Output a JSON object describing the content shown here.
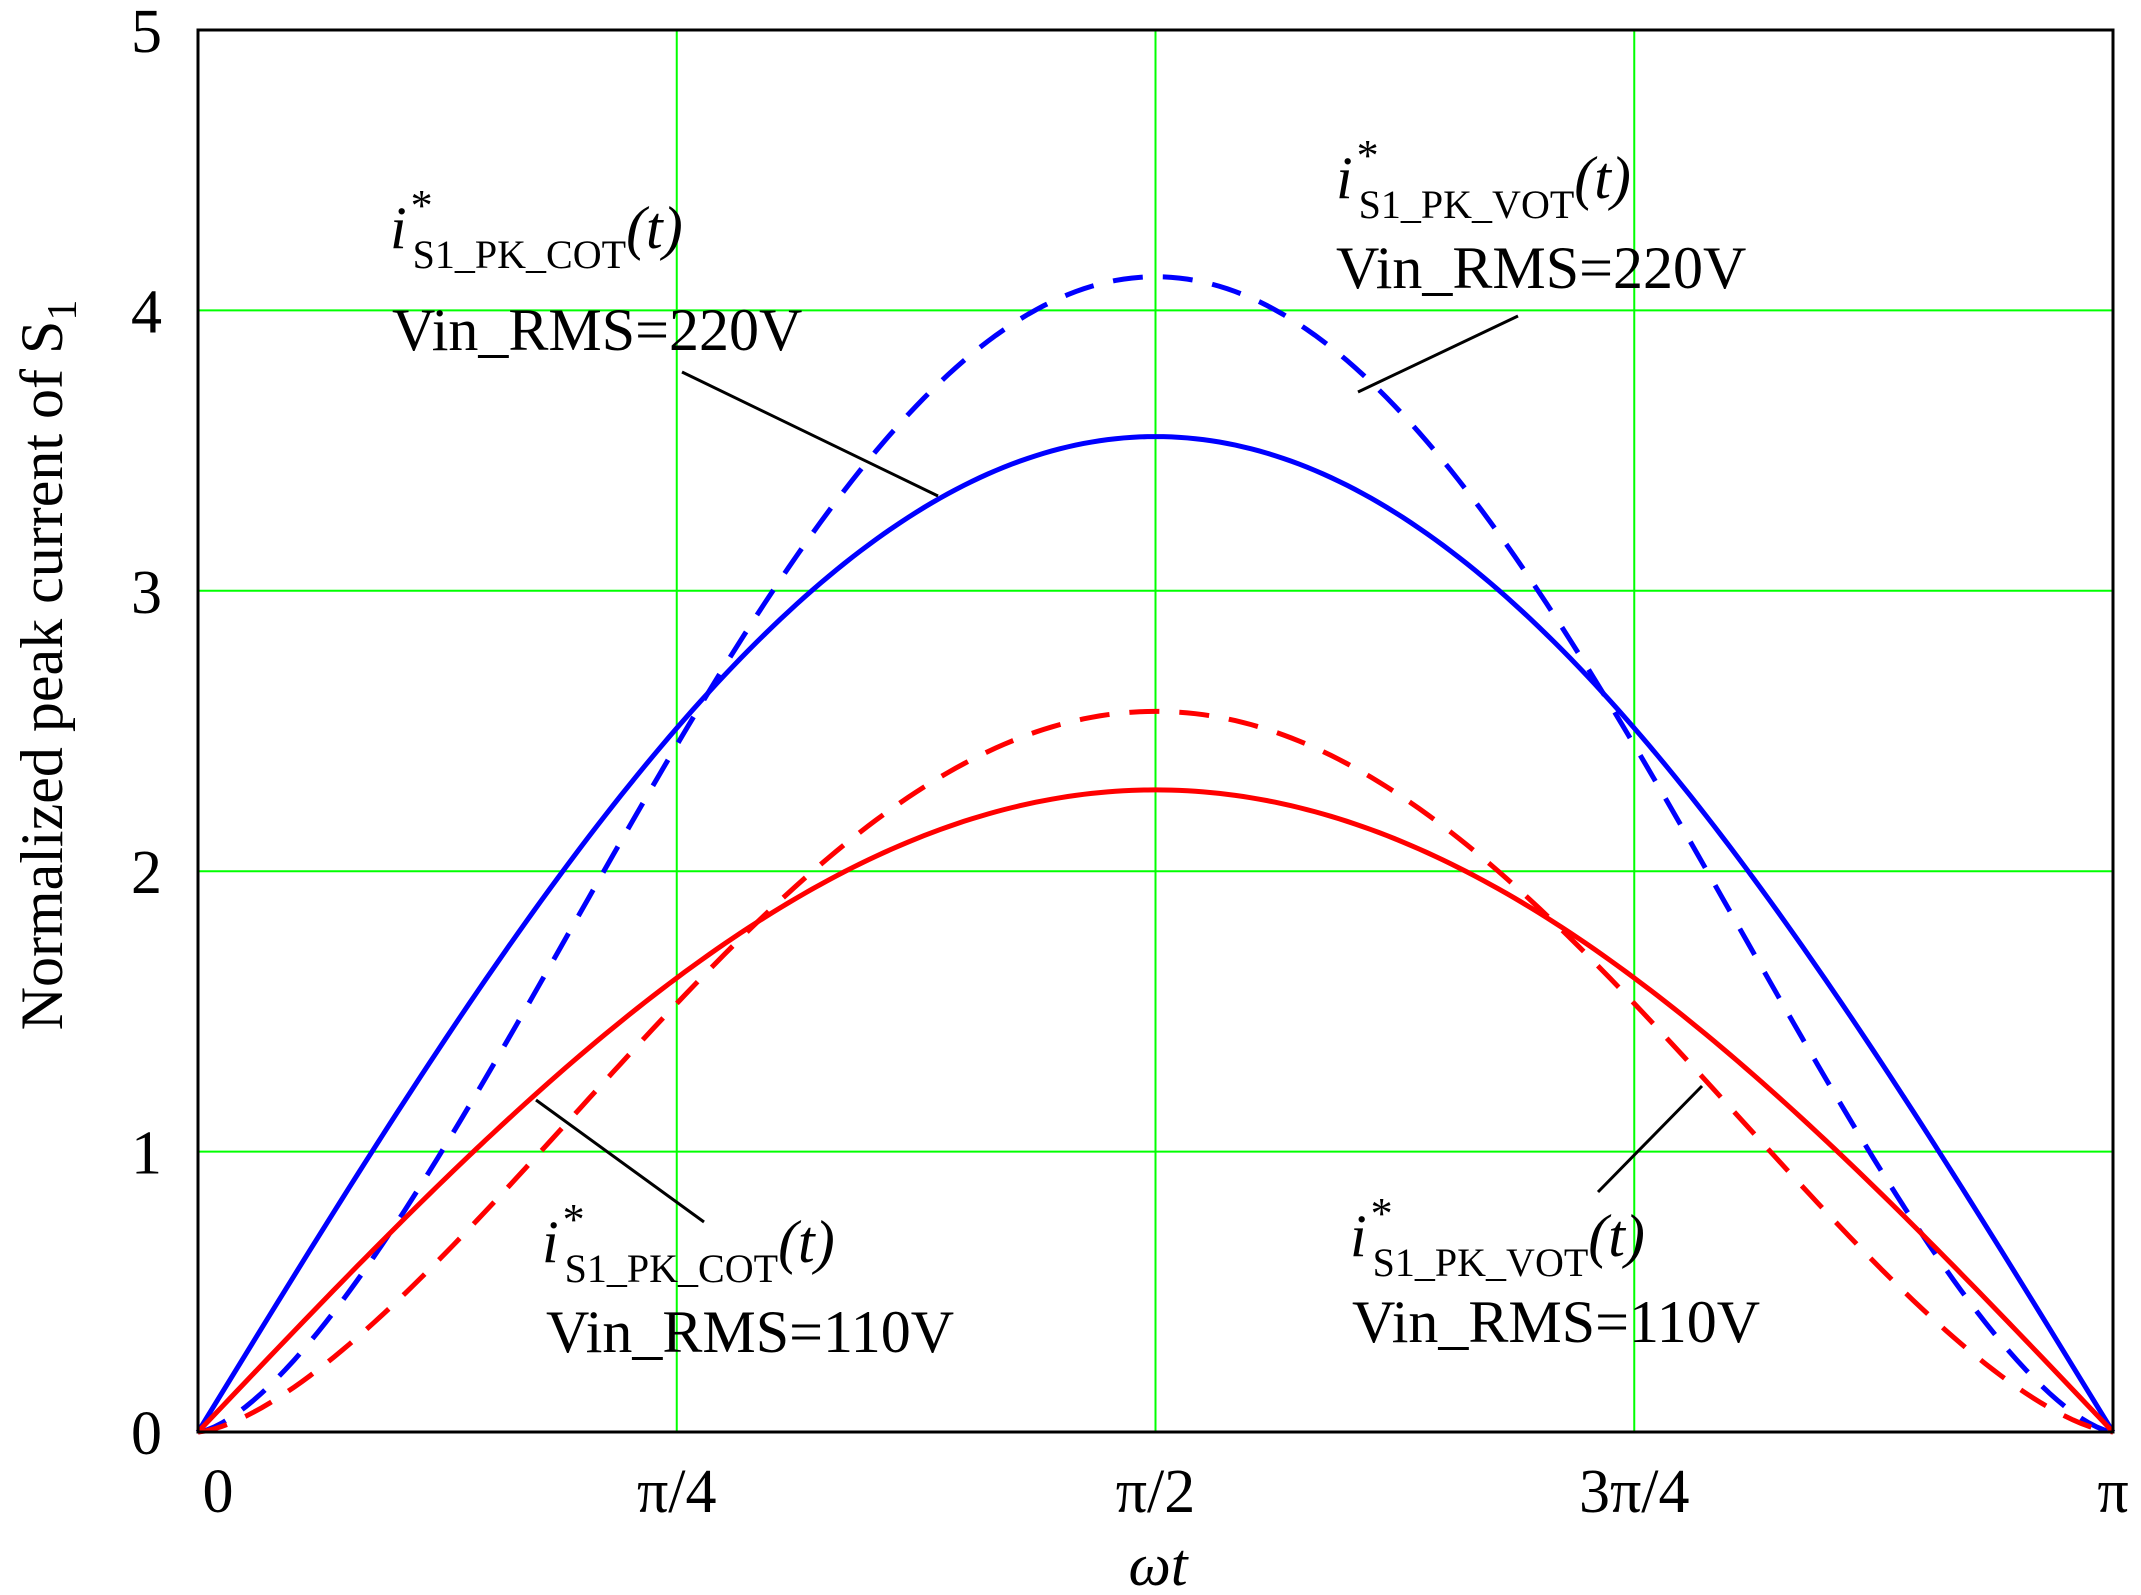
{
  "chart_data": {
    "type": "line",
    "title": "",
    "ylabel": "Normalized peak current of S",
    "ylabel_sub": "1",
    "xlabel": "ωt",
    "xlim": [
      0,
      3.14159265
    ],
    "ylim": [
      0,
      5
    ],
    "grid": true,
    "x_tick_labels": [
      "0",
      "π/4",
      "π/2",
      "3π/4",
      "π"
    ],
    "x_tick_values": [
      0,
      0.78539816,
      1.57079633,
      2.35619449,
      3.14159265
    ],
    "y_tick_labels": [
      "0",
      "1",
      "2",
      "3",
      "4",
      "5"
    ],
    "y_tick_values": [
      0,
      1,
      2,
      3,
      4,
      5
    ],
    "series": [
      {
        "name": "i*S1_PK_COT(t) Vin_RMS=220V",
        "color": "#0000ff",
        "style": "solid",
        "peak": 3.55,
        "shape": "sin"
      },
      {
        "name": "i*S1_PK_VOT(t) Vin_RMS=220V",
        "color": "#0000ff",
        "style": "dashed",
        "peak": 4.12,
        "shape": "sin_pow",
        "exponent": 1.5
      },
      {
        "name": "i*S1_PK_COT(t) Vin_RMS=110V",
        "color": "#ff0000",
        "style": "solid",
        "peak": 2.29,
        "shape": "sin"
      },
      {
        "name": "i*S1_PK_VOT(t) Vin_RMS=110V",
        "color": "#ff0000",
        "style": "dashed",
        "peak": 2.57,
        "shape": "sin_pow",
        "exponent": 1.5
      }
    ],
    "annotations": [
      {
        "id": "cot220",
        "italic_i": "i",
        "star": "*",
        "sub": "S1_PK_COT",
        "func": "(t)",
        "line2": "Vin_RMS=220V"
      },
      {
        "id": "vot220",
        "italic_i": "i",
        "star": "*",
        "sub": "S1_PK_VOT",
        "func": "(t)",
        "line2": "Vin_RMS=220V"
      },
      {
        "id": "cot110",
        "italic_i": "i",
        "star": "*",
        "sub": "S1_PK_COT",
        "func": "(t)",
        "line2": "Vin_RMS=110V"
      },
      {
        "id": "vot110",
        "italic_i": "i",
        "star": "*",
        "sub": "S1_PK_VOT",
        "func": "(t)",
        "line2": "Vin_RMS=110V"
      }
    ],
    "colors": {
      "grid": "#00ff00",
      "axis": "#000000"
    }
  }
}
